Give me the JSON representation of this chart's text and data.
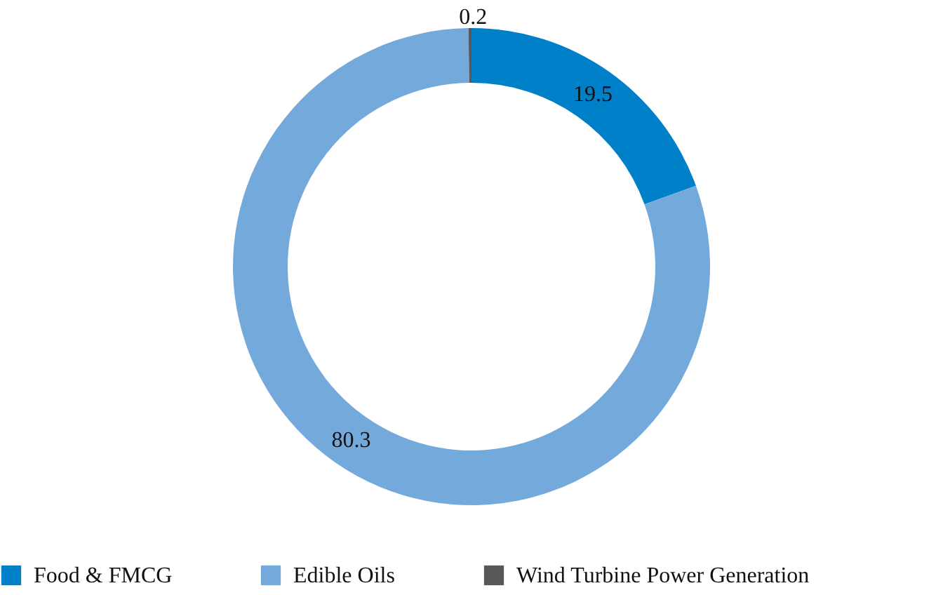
{
  "chart_data": {
    "type": "donut",
    "categories": [
      "Food & FMCG",
      "Edible Oils",
      "Wind Turbine Power Generation"
    ],
    "values": [
      19.5,
      80.3,
      0.2
    ],
    "colors": [
      "#0080c8",
      "#74a9db",
      "#58585a"
    ],
    "data_labels": true,
    "legend": "bottom"
  }
}
